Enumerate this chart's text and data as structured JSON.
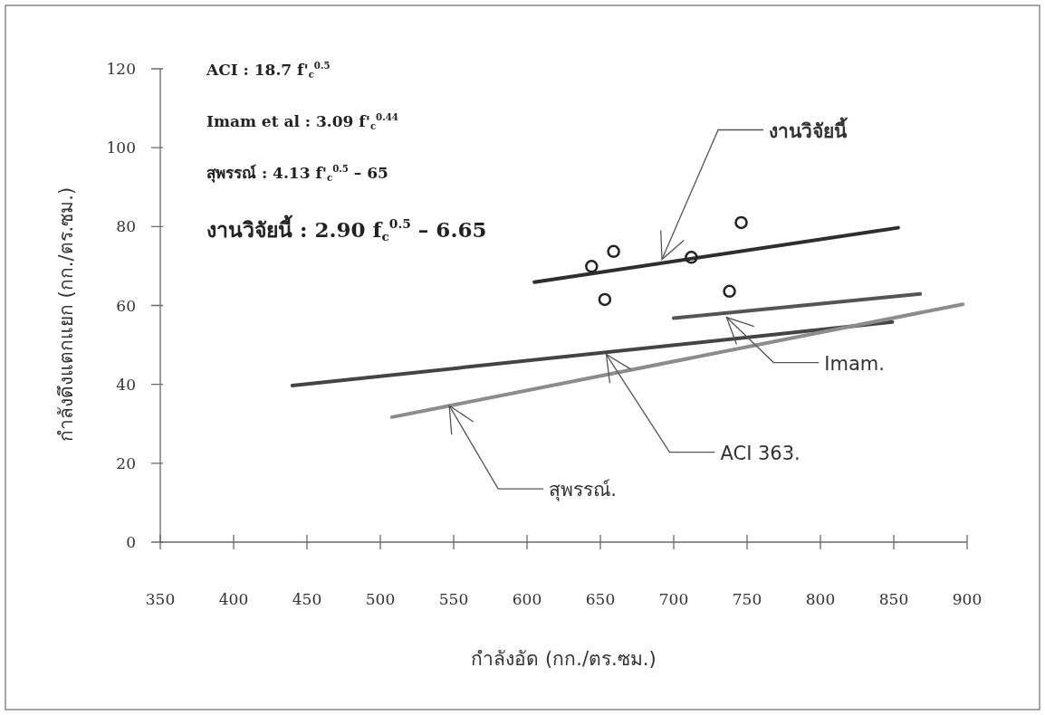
{
  "chart_data": {
    "type": "line",
    "xlabel": "กำลังอัด (กก./ตร.ซม.)",
    "ylabel": "กำลังดึงแตกแยก (กก./ตร.ซม.)",
    "xlim": [
      350,
      900
    ],
    "xticks": [
      350,
      400,
      450,
      500,
      550,
      600,
      650,
      700,
      750,
      800,
      850,
      900
    ],
    "ylim": [
      0,
      120
    ],
    "yticks": [
      0,
      20,
      40,
      60,
      80,
      100,
      120
    ],
    "grid": false,
    "marker": "none",
    "line_style": "solid",
    "series": [
      {
        "color": "#2e2e2e",
        "x": [
          605,
          853
        ],
        "values": [
          65.9,
          79.7
        ]
      },
      {
        "color": "#555555",
        "x": [
          700,
          868
        ],
        "values": [
          56.8,
          62.9
        ]
      },
      {
        "color": "#444444",
        "x": [
          440,
          849
        ],
        "values": [
          39.7,
          55.8
        ]
      },
      {
        "color": "#8c8c8c",
        "x": [
          508,
          897
        ],
        "values": [
          31.7,
          60.3
        ]
      },
      {
        "type": "scatter",
        "color": "#222222",
        "marker": "circle",
        "x": [
          644,
          659,
          712,
          746,
          653,
          738
        ],
        "values": [
          69.9,
          73.7,
          72.2,
          81.0,
          61.5,
          63.6
        ]
      }
    ],
    "annotations": [
      "ACI : 18.7 f'$_{c}$$^{0.5}$",
      "Imam et al : 3.09 f'$_{c}$$^{0.44}$",
      "สุพรรณ์ : 4.13 f'$_{c}$$^{0.5}$ – 65",
      "งานวิจัยนี้ : 2.90 f$_{c}$$^{0.5}$ – 6.65",
      {
        "text": "งานวิจัยนี้",
        "x": 692,
        "y": 71.7
      },
      {
        "text": "Imam.",
        "x": 736,
        "y": 57
      },
      {
        "text": "ACI 363.",
        "x": 654,
        "y": 47.6
      },
      {
        "text": "สุพรรณ์.",
        "x": 547,
        "y": 34.6
      }
    ]
  }
}
